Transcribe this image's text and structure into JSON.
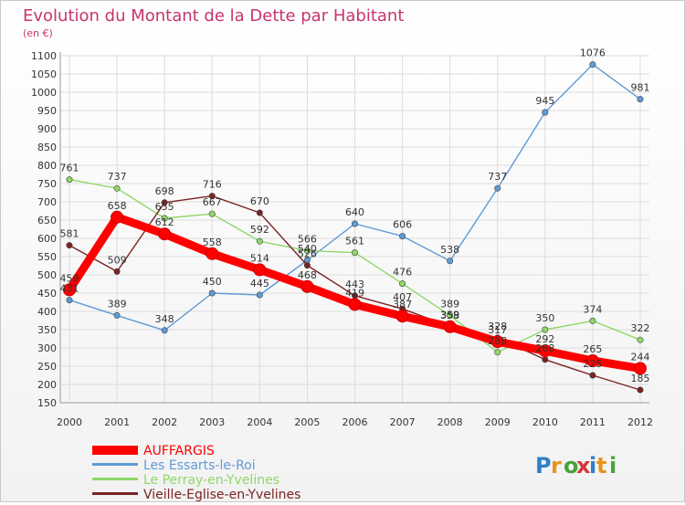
{
  "chart_data": {
    "type": "line",
    "title": "Evolution du Montant de la Dette par Habitant",
    "subtitle": "(en €)",
    "x": [
      "2000",
      "2001",
      "2002",
      "2003",
      "2004",
      "2005",
      "2006",
      "2007",
      "2008",
      "2009",
      "2010",
      "2011",
      "2012"
    ],
    "ylim": [
      150,
      1100
    ],
    "yticks": [
      150,
      200,
      250,
      300,
      350,
      400,
      450,
      500,
      550,
      600,
      650,
      700,
      750,
      800,
      850,
      900,
      950,
      1000,
      1050,
      1100
    ],
    "grid": true,
    "legend_position": "bottom-left",
    "series": [
      {
        "name": "AUFFARGIS",
        "color": "#ff0000",
        "values": [
          459,
          658,
          612,
          558,
          514,
          468,
          419,
          387,
          358,
          317,
          292,
          265,
          244
        ]
      },
      {
        "name": "Les Essarts-le-Roi",
        "color": "#5f9bd5",
        "values": [
          431,
          389,
          348,
          450,
          445,
          540,
          640,
          606,
          538,
          737,
          945,
          1076,
          981
        ]
      },
      {
        "name": "Le Perray-en-Yvelines",
        "color": "#8fd768",
        "values": [
          761,
          737,
          655,
          667,
          592,
          566,
          561,
          476,
          389,
          288,
          350,
          374,
          322
        ]
      },
      {
        "name": "Vieille-Eglise-en-Yvelines",
        "color": "#7b2222",
        "values": [
          581,
          509,
          698,
          716,
          670,
          526,
          443,
          407,
          359,
          328,
          268,
          225,
          185
        ]
      }
    ]
  },
  "branding": {
    "logo_text": "Proxiti"
  }
}
